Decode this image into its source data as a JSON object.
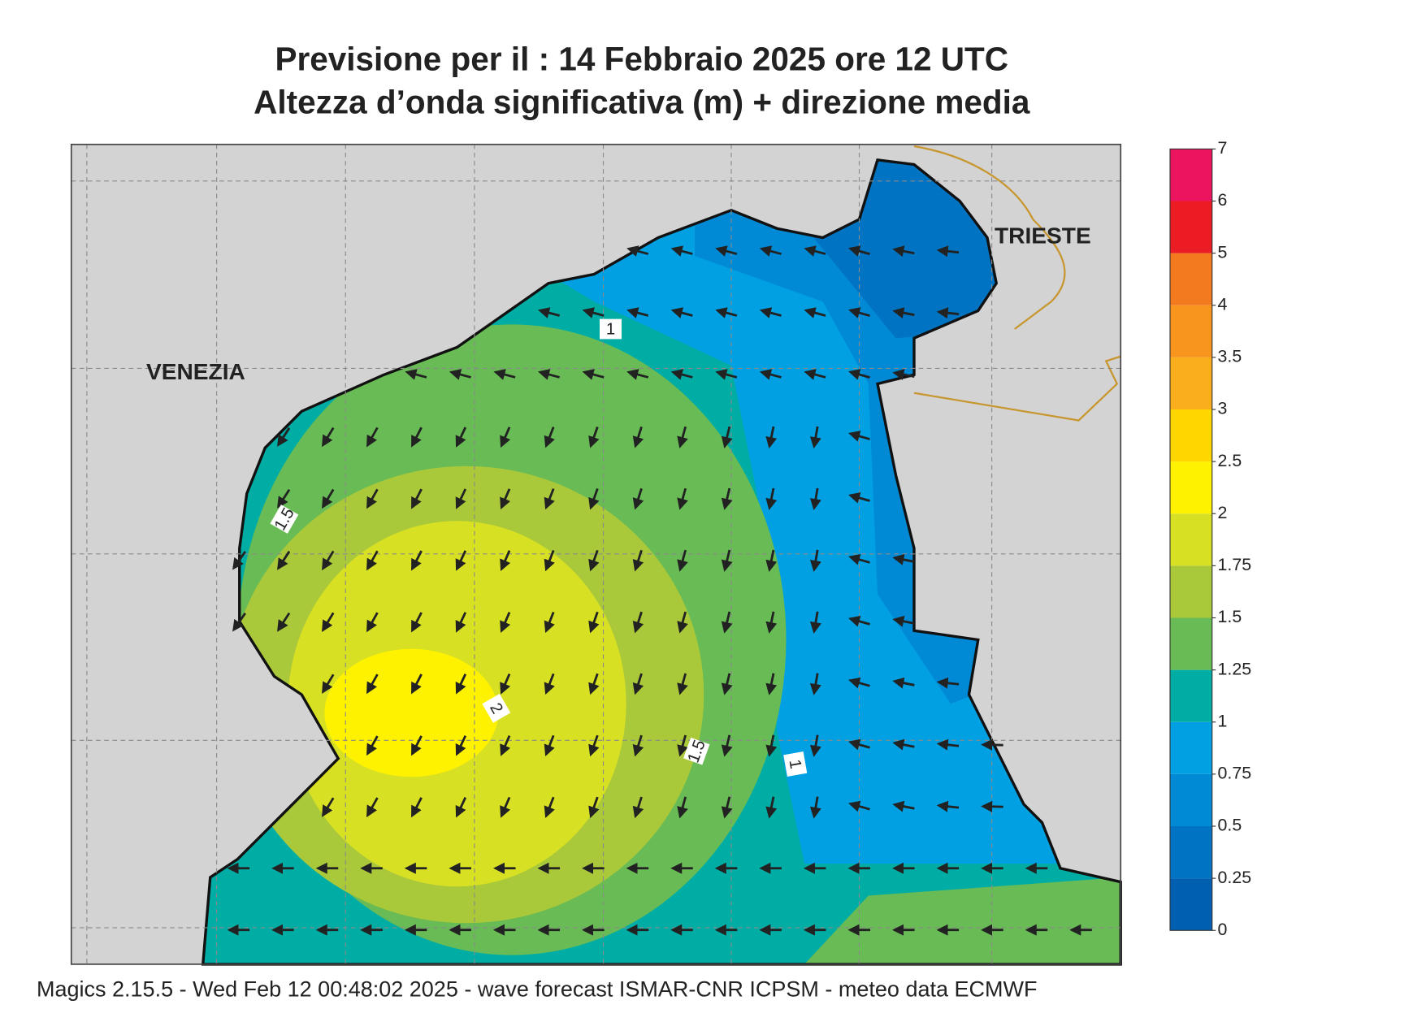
{
  "header": {
    "title_line1": "Previsione per il  :  14  Febbraio 2025   ore 12 UTC",
    "title_line2": "Altezza d’onda significativa (m) + direzione media"
  },
  "places": [
    "VENEZIA",
    "TRIESTE"
  ],
  "contour_labels": [
    1,
    1.5,
    2,
    1.5,
    1
  ],
  "colorbar": {
    "levels": [
      0,
      0.25,
      0.5,
      0.75,
      1,
      1.25,
      1.5,
      1.75,
      2,
      2.5,
      3,
      3.5,
      4,
      5,
      6,
      7
    ],
    "colors": [
      "#005fb0",
      "#0074c2",
      "#008ad6",
      "#00a0e2",
      "#00ada5",
      "#68bb55",
      "#a9c93a",
      "#d8e023",
      "#fff200",
      "#ffd600",
      "#fbae1c",
      "#f7951f",
      "#f47a20",
      "#ec1c24",
      "#ec135f"
    ]
  },
  "footer": "Magics 2.15.5 - Wed Feb 12 00:48:02 2025 - wave forecast  ISMAR-CNR  ICPSM - meteo data   ECMWF"
}
